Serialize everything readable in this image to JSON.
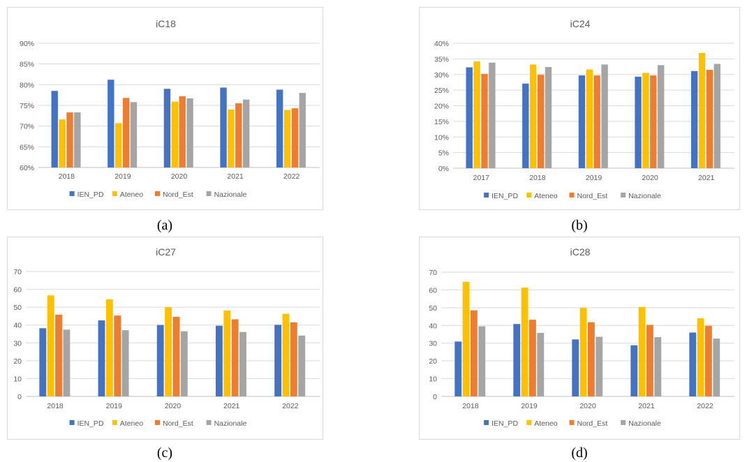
{
  "colors": {
    "IEN_PD": "#4472c4",
    "Ateneo": "#ffc000",
    "Nord_Est": "#ed7d31",
    "Nazionale": "#a5a5a5",
    "grid": "#d9d9d9",
    "text": "#595959"
  },
  "chart_data": [
    {
      "type": "bar",
      "title": "iC18",
      "caption": "(a)",
      "categories": [
        "2018",
        "2019",
        "2020",
        "2021",
        "2022"
      ],
      "ylim": [
        0.6,
        0.9
      ],
      "yticks": [
        0.6,
        0.65,
        0.7,
        0.75,
        0.8,
        0.85,
        0.9
      ],
      "ytick_labels": [
        "60%",
        "65%",
        "70%",
        "75%",
        "80%",
        "85%",
        "90%"
      ],
      "grid": true,
      "legend_position": "bottom",
      "series": [
        {
          "name": "IEN_PD",
          "values": [
            0.785,
            0.812,
            0.79,
            0.793,
            0.788
          ]
        },
        {
          "name": "Ateneo",
          "values": [
            0.716,
            0.707,
            0.759,
            0.74,
            0.739
          ]
        },
        {
          "name": "Nord_Est",
          "values": [
            0.733,
            0.768,
            0.772,
            0.755,
            0.743
          ]
        },
        {
          "name": "Nazionale",
          "values": [
            0.733,
            0.758,
            0.767,
            0.764,
            0.78
          ]
        }
      ]
    },
    {
      "type": "bar",
      "title": "iC24",
      "caption": "(b)",
      "categories": [
        "2017",
        "2018",
        "2019",
        "2020",
        "2021"
      ],
      "ylim": [
        0,
        0.4
      ],
      "yticks": [
        0,
        0.05,
        0.1,
        0.15,
        0.2,
        0.25,
        0.3,
        0.35,
        0.4
      ],
      "ytick_labels": [
        "0%",
        "5%",
        "10%",
        "15%",
        "20%",
        "25%",
        "30%",
        "35%",
        "40%"
      ],
      "grid": true,
      "legend_position": "bottom",
      "series": [
        {
          "name": "IEN_PD",
          "values": [
            0.323,
            0.271,
            0.297,
            0.293,
            0.311
          ]
        },
        {
          "name": "Ateneo",
          "values": [
            0.342,
            0.332,
            0.316,
            0.305,
            0.369
          ]
        },
        {
          "name": "Nord_Est",
          "values": [
            0.302,
            0.299,
            0.297,
            0.297,
            0.315
          ]
        },
        {
          "name": "Nazionale",
          "values": [
            0.338,
            0.324,
            0.332,
            0.33,
            0.334
          ]
        }
      ]
    },
    {
      "type": "bar",
      "title": "iC27",
      "caption": "(c)",
      "categories": [
        "2018",
        "2019",
        "2020",
        "2021",
        "2022"
      ],
      "ylim": [
        0,
        70
      ],
      "yticks": [
        0,
        10,
        20,
        30,
        40,
        50,
        60,
        70
      ],
      "ytick_labels": [
        "0",
        "10",
        "20",
        "30",
        "40",
        "50",
        "60",
        "70"
      ],
      "grid": true,
      "legend_position": "bottom",
      "series": [
        {
          "name": "IEN_PD",
          "values": [
            38.2,
            42.6,
            40.0,
            39.6,
            40.1
          ]
        },
        {
          "name": "Ateneo",
          "values": [
            56.6,
            54.4,
            50.0,
            48.1,
            46.3
          ]
        },
        {
          "name": "Nord_Est",
          "values": [
            45.8,
            45.3,
            44.6,
            43.2,
            41.5
          ]
        },
        {
          "name": "Nazionale",
          "values": [
            37.4,
            37.1,
            36.5,
            36.1,
            34.1
          ]
        }
      ]
    },
    {
      "type": "bar",
      "title": "iC28",
      "caption": "(d)",
      "categories": [
        "2018",
        "2019",
        "2020",
        "2021",
        "2022"
      ],
      "ylim": [
        0,
        70
      ],
      "yticks": [
        0,
        10,
        20,
        30,
        40,
        50,
        60,
        70
      ],
      "ytick_labels": [
        "0",
        "10",
        "20",
        "30",
        "40",
        "50",
        "60",
        "70"
      ],
      "grid": true,
      "legend_position": "bottom",
      "series": [
        {
          "name": "IEN_PD",
          "values": [
            30.9,
            40.8,
            32.1,
            28.8,
            36.0
          ]
        },
        {
          "name": "Ateneo",
          "values": [
            64.6,
            61.3,
            49.9,
            50.4,
            44.0
          ]
        },
        {
          "name": "Nord_Est",
          "values": [
            48.5,
            43.2,
            41.8,
            40.3,
            39.8
          ]
        },
        {
          "name": "Nazionale",
          "values": [
            39.5,
            35.8,
            33.6,
            33.4,
            32.6
          ]
        }
      ]
    }
  ]
}
